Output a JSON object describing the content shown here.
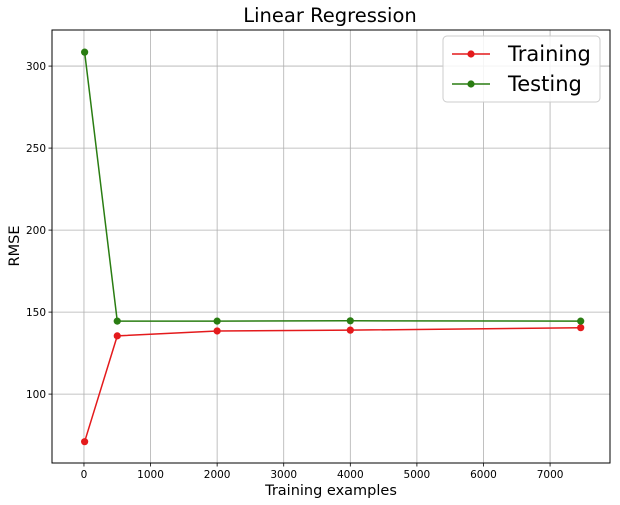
{
  "chart_data": {
    "type": "line",
    "title": "Linear Regression",
    "xlabel": "Training examples",
    "ylabel": "RMSE",
    "xlim": [
      -480,
      7900
    ],
    "ylim": [
      58,
      322
    ],
    "x_ticks": [
      0,
      1000,
      2000,
      3000,
      4000,
      5000,
      6000,
      7000
    ],
    "y_ticks": [
      100,
      150,
      200,
      250,
      300
    ],
    "grid": true,
    "legend_position": "top-right",
    "series": [
      {
        "name": "Training",
        "color": "#e41a1c",
        "marker": "circle",
        "x": [
          10,
          500,
          2000,
          4000,
          7460
        ],
        "y": [
          71,
          135.5,
          138.5,
          139,
          140.5
        ]
      },
      {
        "name": "Testing",
        "color": "#2a7d12",
        "marker": "circle",
        "x": [
          10,
          500,
          2000,
          4000,
          7460
        ],
        "y": [
          308.5,
          144.5,
          144.5,
          144.7,
          144.5
        ]
      }
    ]
  }
}
